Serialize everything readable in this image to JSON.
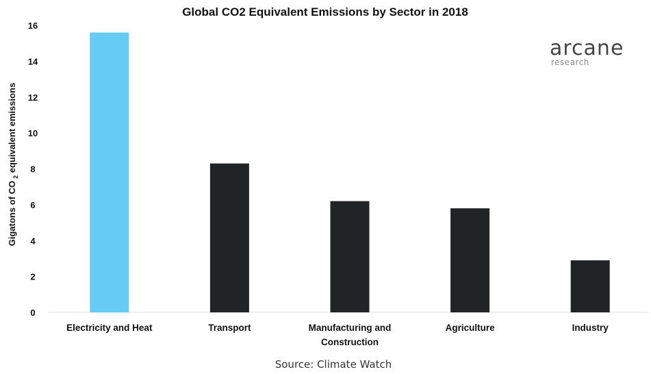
{
  "chart_data": {
    "type": "bar",
    "title": "Global CO2 Equivalent Emissions by Sector in 2018",
    "ylabel_parts": [
      "Gigatons of CO",
      "2",
      " equivalent emissions"
    ],
    "xlabel": "",
    "categories": [
      [
        "Electricity and Heat"
      ],
      [
        "Transport"
      ],
      [
        "Manufacturing and",
        "Construction"
      ],
      [
        "Agriculture"
      ],
      [
        "Industry"
      ]
    ],
    "values": [
      15.6,
      8.3,
      6.2,
      5.8,
      2.9
    ],
    "bar_colors": [
      "#66CCF5",
      "#212326",
      "#212326",
      "#212326",
      "#212326"
    ],
    "ylim": [
      0,
      16
    ],
    "yticks": [
      0,
      2,
      4,
      6,
      8,
      10,
      12,
      14,
      16
    ],
    "grid": false,
    "source": "Source: Climate Watch"
  },
  "logo": {
    "name": "arcane",
    "subtitle": "research"
  }
}
